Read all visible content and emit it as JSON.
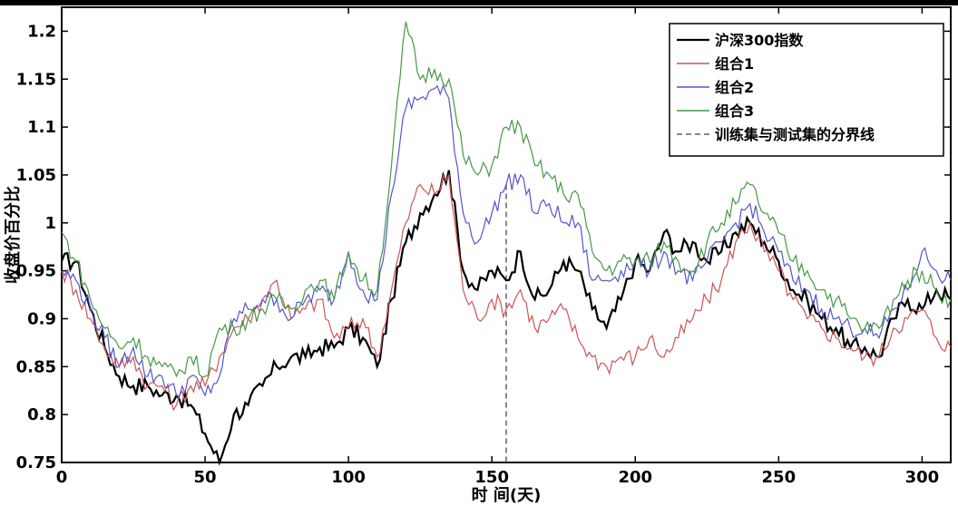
{
  "chart_data": {
    "type": "line",
    "xlabel": "时 间(天)",
    "ylabel": "收盘价百分比",
    "xlim": [
      0,
      310
    ],
    "ylim": [
      0.75,
      1.225
    ],
    "x_ticks": [
      0,
      50,
      100,
      150,
      200,
      250,
      300
    ],
    "y_ticks": [
      0.75,
      0.8,
      0.85,
      0.9,
      0.95,
      1,
      1.05,
      1.1,
      1.15,
      1.2
    ],
    "y_tick_labels": [
      "0.75",
      "0.8",
      "0.85",
      "0.9",
      "0.95",
      "1",
      "1.05",
      "1.1",
      "1.15",
      "1.2"
    ],
    "grid": false,
    "legend_position": "top-right",
    "split_line": {
      "name": "训练集与测试集的分界线",
      "x": 155,
      "style": "dashed",
      "color": "#888888"
    },
    "x": [
      0,
      5,
      10,
      15,
      20,
      25,
      30,
      35,
      40,
      45,
      50,
      55,
      60,
      65,
      70,
      75,
      80,
      85,
      90,
      95,
      100,
      105,
      110,
      115,
      120,
      125,
      130,
      135,
      140,
      145,
      150,
      155,
      160,
      165,
      170,
      175,
      180,
      185,
      190,
      195,
      200,
      205,
      210,
      215,
      220,
      225,
      230,
      235,
      240,
      245,
      250,
      255,
      260,
      265,
      270,
      275,
      280,
      285,
      290,
      295,
      300,
      305,
      310
    ],
    "series": [
      {
        "name": "沪深300指数",
        "color": "#000000",
        "values": [
          0.96,
          0.96,
          0.91,
          0.87,
          0.84,
          0.83,
          0.83,
          0.82,
          0.82,
          0.81,
          0.78,
          0.75,
          0.8,
          0.81,
          0.83,
          0.85,
          0.86,
          0.86,
          0.87,
          0.87,
          0.89,
          0.88,
          0.85,
          0.92,
          0.98,
          1.01,
          1.03,
          1.055,
          0.95,
          0.93,
          0.95,
          0.94,
          0.97,
          0.92,
          0.93,
          0.96,
          0.95,
          0.91,
          0.89,
          0.92,
          0.96,
          0.95,
          0.99,
          0.97,
          0.98,
          0.96,
          0.97,
          0.99,
          1.0,
          0.98,
          0.96,
          0.93,
          0.92,
          0.9,
          0.89,
          0.87,
          0.87,
          0.86,
          0.9,
          0.92,
          0.91,
          0.93,
          0.92
        ]
      },
      {
        "name": "组合1",
        "color": "#cc5555",
        "values": [
          0.95,
          0.93,
          0.9,
          0.87,
          0.85,
          0.86,
          0.83,
          0.83,
          0.81,
          0.83,
          0.83,
          0.86,
          0.89,
          0.9,
          0.92,
          0.94,
          0.9,
          0.91,
          0.92,
          0.88,
          0.89,
          0.9,
          0.86,
          0.93,
          1.0,
          1.04,
          1.03,
          1.05,
          0.93,
          0.9,
          0.92,
          0.91,
          0.93,
          0.89,
          0.9,
          0.91,
          0.88,
          0.86,
          0.85,
          0.86,
          0.86,
          0.88,
          0.86,
          0.88,
          0.9,
          0.92,
          0.94,
          0.98,
          1.0,
          0.97,
          0.95,
          0.92,
          0.9,
          0.89,
          0.88,
          0.87,
          0.86,
          0.86,
          0.89,
          0.9,
          0.91,
          0.88,
          0.87
        ]
      },
      {
        "name": "组合2",
        "color": "#5555cc",
        "values": [
          0.95,
          0.94,
          0.91,
          0.88,
          0.85,
          0.87,
          0.84,
          0.84,
          0.82,
          0.84,
          0.82,
          0.84,
          0.9,
          0.91,
          0.92,
          0.92,
          0.9,
          0.92,
          0.93,
          0.92,
          0.97,
          0.93,
          0.92,
          1.03,
          1.12,
          1.13,
          1.14,
          1.13,
          1.01,
          0.98,
          1.01,
          1.04,
          1.05,
          1.01,
          1.02,
          1.0,
          1.0,
          0.94,
          0.94,
          0.95,
          0.96,
          0.95,
          0.97,
          0.95,
          0.94,
          0.96,
          0.98,
          1.0,
          1.02,
          0.99,
          0.97,
          0.94,
          0.93,
          0.91,
          0.9,
          0.89,
          0.89,
          0.88,
          0.91,
          0.93,
          0.97,
          0.95,
          0.94
        ]
      },
      {
        "name": "组合3",
        "color": "#449944",
        "values": [
          0.99,
          0.96,
          0.92,
          0.89,
          0.87,
          0.88,
          0.86,
          0.85,
          0.84,
          0.86,
          0.84,
          0.89,
          0.89,
          0.9,
          0.91,
          0.92,
          0.91,
          0.93,
          0.94,
          0.92,
          0.97,
          0.94,
          0.93,
          1.06,
          1.21,
          1.15,
          1.16,
          1.15,
          1.07,
          1.05,
          1.06,
          1.1,
          1.1,
          1.06,
          1.05,
          1.03,
          1.03,
          0.97,
          0.95,
          0.96,
          0.96,
          0.96,
          0.98,
          0.96,
          0.95,
          0.98,
          1.0,
          1.02,
          1.04,
          1.01,
          0.99,
          0.96,
          0.95,
          0.93,
          0.92,
          0.9,
          0.89,
          0.89,
          0.92,
          0.94,
          0.95,
          0.93,
          0.92
        ]
      }
    ]
  }
}
